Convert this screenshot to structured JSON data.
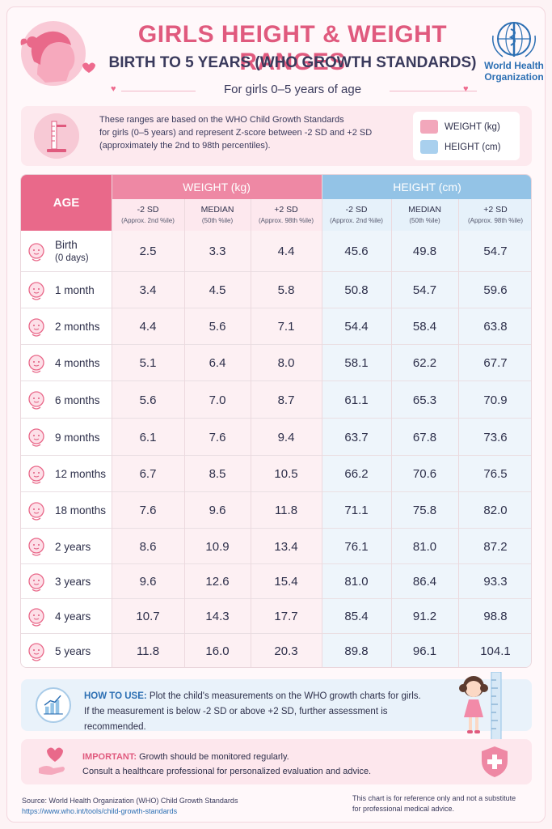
{
  "header": {
    "title": "GIRLS HEIGHT & WEIGHT RANGES",
    "subtitle": "BIRTH TO 5 YEARS (WHO GROWTH STANDARDS)",
    "tagline": "For girls 0–5 years of age",
    "org_name_line1": "World Health",
    "org_name_line2": "Organization"
  },
  "info": {
    "line1": "These ranges are based on the WHO Child Growth Standards",
    "line2": "for girls (0–5 years) and represent Z-score between -2 SD and +2 SD",
    "line3": "(approximately the 2nd to 98th percentiles).",
    "legend_weight": "WEIGHT (kg)",
    "legend_height": "HEIGHT (cm)"
  },
  "table": {
    "age_header": "AGE",
    "weight_header": "WEIGHT (kg)",
    "height_header": "HEIGHT (cm)",
    "sub": [
      {
        "label": "-2 SD",
        "note": "(Approx. 2nd %ile)"
      },
      {
        "label": "MEDIAN",
        "note": "(50th %ile)"
      },
      {
        "label": "+2 SD",
        "note": "(Approx. 98th %ile)"
      },
      {
        "label": "-2 SD",
        "note": "(Approx. 2nd %ile)"
      },
      {
        "label": "MEDIAN",
        "note": "(50th %ile)"
      },
      {
        "label": "+2 SD",
        "note": "(Approx. 98th %ile)"
      }
    ],
    "rows": [
      {
        "age": "Birth",
        "age_note": "(0 days)",
        "values": [
          "2.5",
          "3.3",
          "4.4",
          "45.6",
          "49.8",
          "54.7"
        ]
      },
      {
        "age": "1 month",
        "age_note": "",
        "values": [
          "3.4",
          "4.5",
          "5.8",
          "50.8",
          "54.7",
          "59.6"
        ]
      },
      {
        "age": "2 months",
        "age_note": "",
        "values": [
          "4.4",
          "5.6",
          "7.1",
          "54.4",
          "58.4",
          "63.8"
        ]
      },
      {
        "age": "4 months",
        "age_note": "",
        "values": [
          "5.1",
          "6.4",
          "8.0",
          "58.1",
          "62.2",
          "67.7"
        ]
      },
      {
        "age": "6 months",
        "age_note": "",
        "values": [
          "5.6",
          "7.0",
          "8.7",
          "61.1",
          "65.3",
          "70.9"
        ]
      },
      {
        "age": "9 months",
        "age_note": "",
        "values": [
          "6.1",
          "7.6",
          "9.4",
          "63.7",
          "67.8",
          "73.6"
        ]
      },
      {
        "age": "12 months",
        "age_note": "",
        "values": [
          "6.7",
          "8.5",
          "10.5",
          "66.2",
          "70.6",
          "76.5"
        ]
      },
      {
        "age": "18 months",
        "age_note": "",
        "values": [
          "7.6",
          "9.6",
          "11.8",
          "71.1",
          "75.8",
          "82.0"
        ]
      },
      {
        "age": "2 years",
        "age_note": "",
        "values": [
          "8.6",
          "10.9",
          "13.4",
          "76.1",
          "81.0",
          "87.2"
        ]
      },
      {
        "age": "3 years",
        "age_note": "",
        "values": [
          "9.6",
          "12.6",
          "15.4",
          "81.0",
          "86.4",
          "93.3"
        ]
      },
      {
        "age": "4 years",
        "age_note": "",
        "values": [
          "10.7",
          "14.3",
          "17.7",
          "85.4",
          "91.2",
          "98.8"
        ]
      },
      {
        "age": "5 years",
        "age_note": "",
        "values": [
          "11.8",
          "16.0",
          "20.3",
          "89.8",
          "96.1",
          "104.1"
        ]
      }
    ]
  },
  "howto": {
    "label": "HOW TO USE:",
    "line1": " Plot the child's measurements on the WHO growth charts for girls.",
    "line2": "If the measurement is below -2 SD or above +2 SD, further assessment is recommended."
  },
  "important": {
    "label": "IMPORTANT:",
    "line1": "  Growth should be monitored regularly.",
    "line2": "Consult a healthcare professional for personalized evaluation and advice."
  },
  "footer": {
    "source": "Source: World Health Organization (WHO) Child Growth Standards",
    "url": "https://www.who.int/tools/child-growth-standards",
    "disclaimer_line1": "This chart is for reference only and not a substitute",
    "disclaimer_line2": "for professional medical advice."
  },
  "colors": {
    "accent_pink": "#e05a7e",
    "weight_pink": "#ee88a4",
    "height_blue": "#93c3e6",
    "who_blue": "#2c6fb3"
  }
}
